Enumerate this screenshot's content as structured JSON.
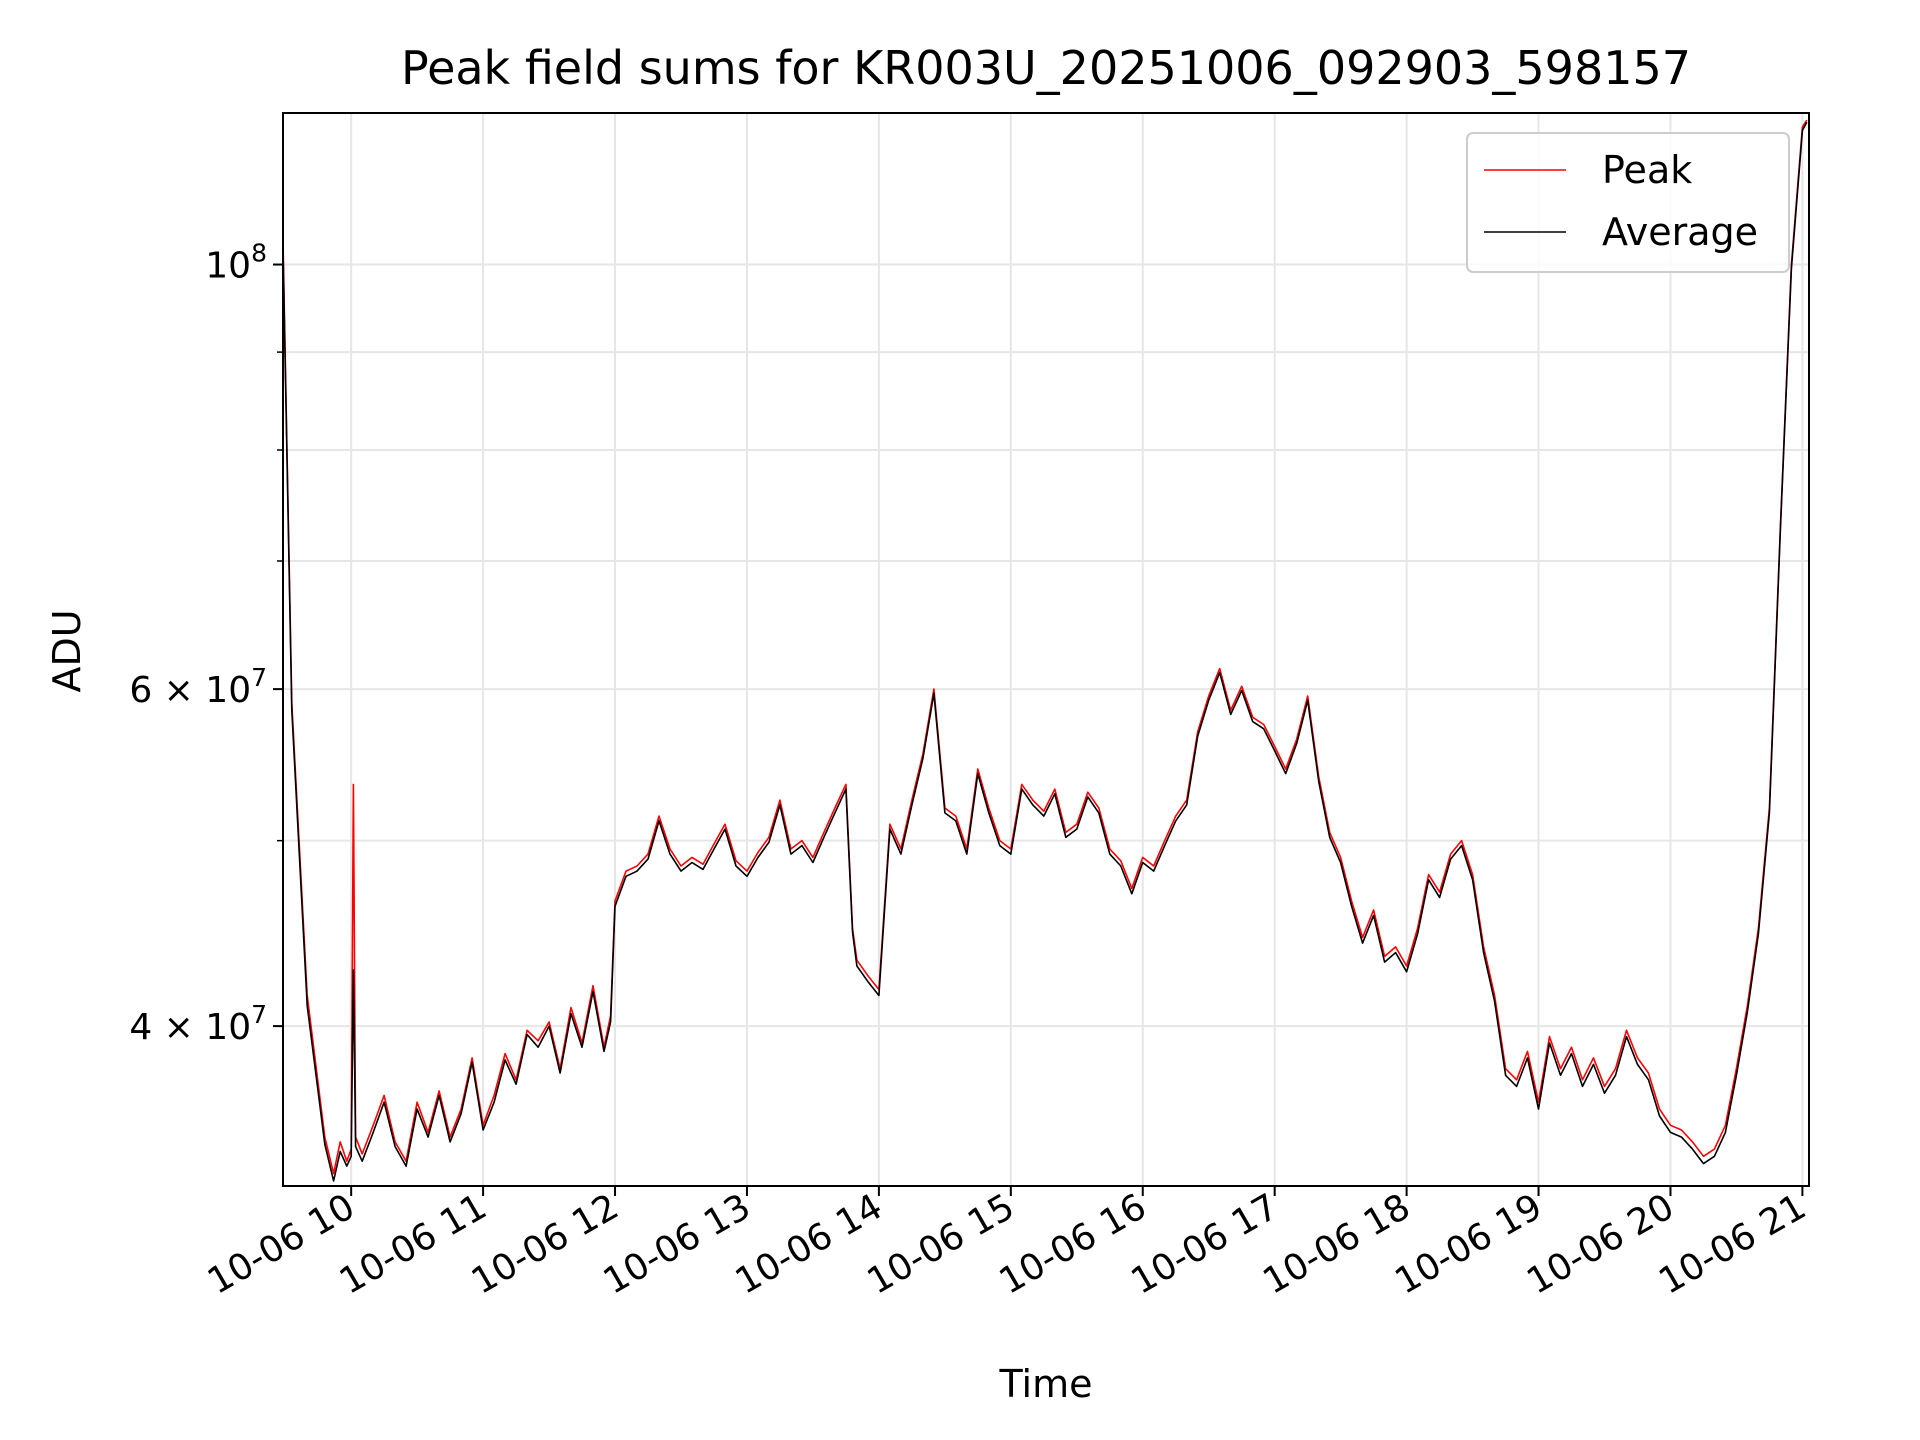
{
  "chart_data": {
    "type": "line",
    "title": "Peak field sums for KR003U_20251006_092903_598157",
    "xlabel": "Time",
    "ylabel": "ADU",
    "yscale": "log",
    "ylim": [
      33000000,
      120000000
    ],
    "xlim": [
      "2025-10-06 09:29",
      "2025-10-06 21:03"
    ],
    "x_ticks": [
      "2025-10-06 10:00",
      "2025-10-06 11:00",
      "2025-10-06 12:00",
      "2025-10-06 13:00",
      "2025-10-06 14:00",
      "2025-10-06 15:00",
      "2025-10-06 16:00",
      "2025-10-06 17:00",
      "2025-10-06 18:00",
      "2025-10-06 19:00",
      "2025-10-06 20:00",
      "2025-10-06 21:00"
    ],
    "x_tick_labels": [
      "10-06 10",
      "10-06 11",
      "10-06 12",
      "10-06 13",
      "10-06 14",
      "10-06 15",
      "10-06 16",
      "10-06 17",
      "10-06 18",
      "10-06 19",
      "10-06 20",
      "10-06 21"
    ],
    "y_ticks": [
      {
        "value": 100000000,
        "base": "10",
        "exp": "8"
      },
      {
        "value": 60000000,
        "base": "6 × 10",
        "exp": "7"
      },
      {
        "value": 40000000,
        "base": "4 × 10",
        "exp": "7"
      }
    ],
    "y_minor_ticks": [
      90000000,
      80000000,
      70000000,
      50000000
    ],
    "grid": true,
    "legend_position": "upper right",
    "x": [
      "09:29",
      "09:33",
      "09:40",
      "09:48",
      "09:52",
      "09:55",
      "09:58",
      "10:00",
      "10:01",
      "10:02",
      "10:05",
      "10:10",
      "10:15",
      "10:20",
      "10:25",
      "10:30",
      "10:35",
      "10:40",
      "10:45",
      "10:50",
      "10:55",
      "11:00",
      "11:05",
      "11:10",
      "11:15",
      "11:20",
      "11:25",
      "11:30",
      "11:35",
      "11:40",
      "11:45",
      "11:50",
      "11:55",
      "11:58",
      "12:00",
      "12:05",
      "12:10",
      "12:15",
      "12:20",
      "12:25",
      "12:30",
      "12:35",
      "12:40",
      "12:45",
      "12:50",
      "12:55",
      "13:00",
      "13:05",
      "13:10",
      "13:15",
      "13:20",
      "13:25",
      "13:30",
      "13:35",
      "13:40",
      "13:45",
      "13:48",
      "13:50",
      "13:55",
      "14:00",
      "14:05",
      "14:10",
      "14:15",
      "14:20",
      "14:25",
      "14:30",
      "14:35",
      "14:40",
      "14:45",
      "14:50",
      "14:55",
      "15:00",
      "15:05",
      "15:10",
      "15:15",
      "15:20",
      "15:25",
      "15:30",
      "15:35",
      "15:40",
      "15:45",
      "15:50",
      "15:55",
      "16:00",
      "16:05",
      "16:10",
      "16:15",
      "16:20",
      "16:25",
      "16:30",
      "16:35",
      "16:40",
      "16:45",
      "16:50",
      "16:55",
      "17:00",
      "17:05",
      "17:10",
      "17:15",
      "17:20",
      "17:25",
      "17:30",
      "17:35",
      "17:40",
      "17:45",
      "17:50",
      "17:55",
      "18:00",
      "18:05",
      "18:10",
      "18:15",
      "18:20",
      "18:25",
      "18:30",
      "18:35",
      "18:40",
      "18:45",
      "18:50",
      "18:55",
      "19:00",
      "19:05",
      "19:10",
      "19:15",
      "19:20",
      "19:25",
      "19:30",
      "19:35",
      "19:40",
      "19:45",
      "19:50",
      "19:55",
      "20:00",
      "20:05",
      "20:10",
      "20:15",
      "20:20",
      "20:25",
      "20:30",
      "20:35",
      "20:40",
      "20:45",
      "20:50",
      "20:55",
      "21:00",
      "21:02"
    ],
    "series": [
      {
        "name": "Peak",
        "color": "#ff0000",
        "values": [
          103000000,
          59000000,
          41500000,
          35000000,
          33500000,
          34800000,
          34000000,
          34500000,
          53500000,
          35000000,
          34300000,
          35500000,
          36800000,
          34800000,
          34000000,
          36500000,
          35200000,
          37000000,
          35000000,
          36200000,
          38500000,
          35500000,
          36800000,
          38700000,
          37500000,
          39800000,
          39300000,
          40200000,
          38000000,
          40900000,
          39200000,
          42000000,
          39000000,
          40500000,
          46500000,
          48200000,
          48500000,
          49200000,
          51500000,
          49500000,
          48500000,
          49000000,
          48600000,
          49800000,
          51000000,
          48800000,
          48200000,
          49300000,
          50200000,
          52500000,
          49500000,
          50000000,
          49000000,
          50500000,
          52000000,
          53500000,
          45000000,
          43300000,
          42500000,
          41800000,
          51000000,
          49500000,
          52500000,
          55500000,
          60000000,
          52000000,
          51500000,
          49500000,
          54500000,
          52000000,
          50000000,
          49500000,
          53500000,
          52500000,
          51800000,
          53200000,
          50500000,
          51000000,
          53000000,
          52000000,
          49500000,
          48800000,
          47200000,
          49000000,
          48500000,
          50000000,
          51500000,
          52500000,
          57000000,
          59500000,
          61500000,
          58500000,
          60200000,
          58000000,
          57500000,
          56000000,
          54500000,
          56500000,
          59500000,
          54000000,
          50500000,
          49000000,
          46500000,
          44500000,
          46000000,
          43500000,
          44000000,
          43000000,
          45000000,
          48000000,
          47000000,
          49200000,
          50000000,
          48000000,
          44000000,
          41500000,
          38000000,
          37500000,
          38800000,
          36500000,
          39500000,
          38000000,
          39000000,
          37500000,
          38500000,
          37200000,
          38000000,
          39800000,
          38500000,
          37800000,
          36200000,
          35500000,
          35300000,
          34800000,
          34200000,
          34500000,
          35500000,
          38000000,
          41000000,
          45000000,
          52000000,
          73000000,
          100000000,
          118000000,
          119000000
        ]
      },
      {
        "name": "Average",
        "color": "#000000",
        "values": [
          102000000,
          58500000,
          41000000,
          34700000,
          33200000,
          34400000,
          33800000,
          34200000,
          42800000,
          34600000,
          34000000,
          35200000,
          36500000,
          34600000,
          33800000,
          36200000,
          35000000,
          36800000,
          34800000,
          36000000,
          38300000,
          35300000,
          36500000,
          38400000,
          37300000,
          39600000,
          39000000,
          40000000,
          37800000,
          40600000,
          39000000,
          41700000,
          38800000,
          40200000,
          46200000,
          47900000,
          48200000,
          48900000,
          51200000,
          49200000,
          48200000,
          48700000,
          48300000,
          49500000,
          50700000,
          48500000,
          47900000,
          49000000,
          49900000,
          52200000,
          49200000,
          49700000,
          48700000,
          50200000,
          51700000,
          53200000,
          44800000,
          43000000,
          42200000,
          41500000,
          50700000,
          49200000,
          52200000,
          55200000,
          59700000,
          51700000,
          51200000,
          49200000,
          54200000,
          51700000,
          49700000,
          49200000,
          53200000,
          52200000,
          51500000,
          52900000,
          50200000,
          50700000,
          52700000,
          51700000,
          49200000,
          48500000,
          46900000,
          48700000,
          48200000,
          49700000,
          51200000,
          52200000,
          56700000,
          59200000,
          61200000,
          58200000,
          59900000,
          57700000,
          57200000,
          55700000,
          54200000,
          56200000,
          59200000,
          53700000,
          50200000,
          48700000,
          46200000,
          44200000,
          45700000,
          43200000,
          43700000,
          42700000,
          44700000,
          47700000,
          46700000,
          48900000,
          49700000,
          47700000,
          43700000,
          41200000,
          37700000,
          37200000,
          38500000,
          36200000,
          39200000,
          37700000,
          38700000,
          37200000,
          38200000,
          36900000,
          37700000,
          39500000,
          38200000,
          37500000,
          35900000,
          35200000,
          35000000,
          34500000,
          33900000,
          34200000,
          35200000,
          37700000,
          40700000,
          44700000,
          51700000,
          72700000,
          99500000,
          117500000,
          118700000
        ]
      }
    ]
  }
}
